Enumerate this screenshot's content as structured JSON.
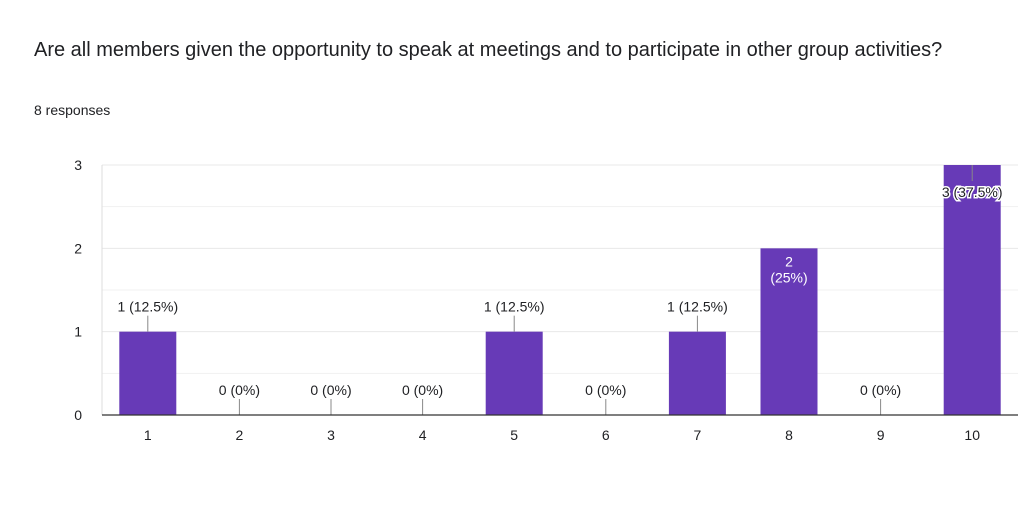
{
  "question": {
    "title": "Are all members given the opportunity to speak at meetings and to participate in other group activities?",
    "responses": "8 responses"
  },
  "colors": {
    "bar": "#673ab7",
    "grid": "#e8e8e8",
    "axis": "#333333",
    "text": "#202124",
    "label_inside": "#ffffff"
  },
  "chart_data": {
    "type": "bar",
    "title": "Are all members given the opportunity to speak at meetings and to participate in other group activities?",
    "categories": [
      "1",
      "2",
      "3",
      "4",
      "5",
      "6",
      "7",
      "8",
      "9",
      "10"
    ],
    "values": [
      1,
      0,
      0,
      0,
      1,
      0,
      1,
      2,
      0,
      3
    ],
    "data_labels": [
      "1 (12.5%)",
      "0 (0%)",
      "0 (0%)",
      "0 (0%)",
      "1 (12.5%)",
      "0 (0%)",
      "1 (12.5%)",
      "2 (25%)",
      "0 (0%)",
      "3 (37.5%)"
    ],
    "y_ticks": [
      "0",
      "1",
      "2",
      "3"
    ],
    "ylim": [
      0,
      3
    ],
    "xlabel": "",
    "ylabel": "",
    "grid": true
  }
}
